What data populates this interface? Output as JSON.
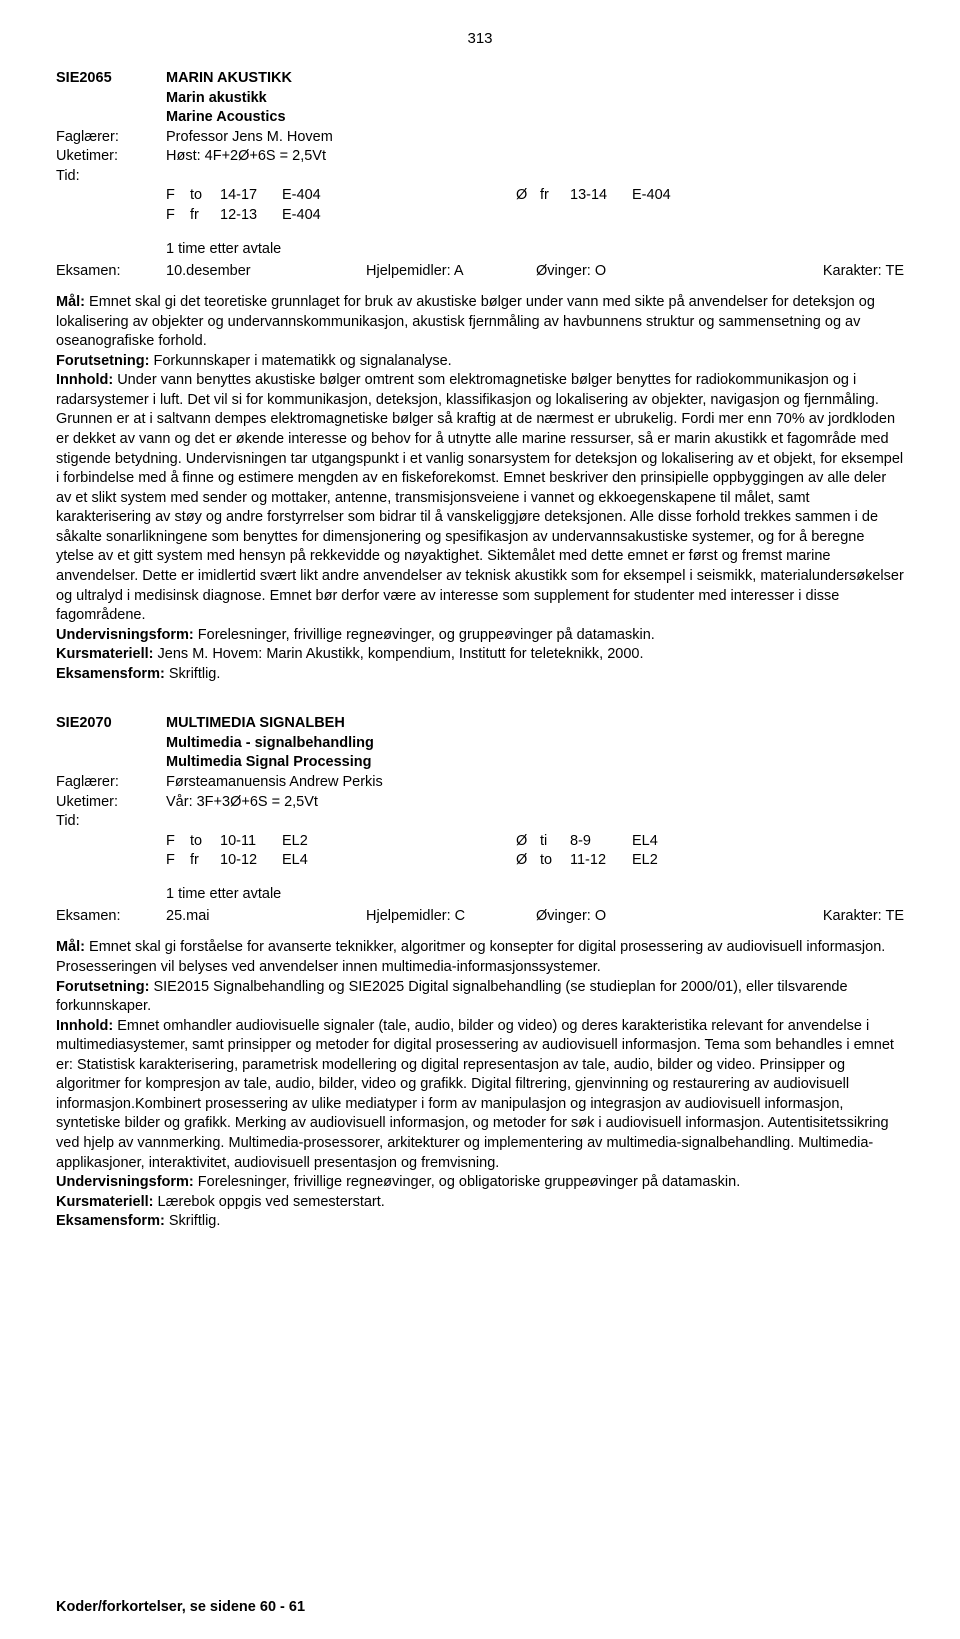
{
  "page_number": "313",
  "footer": "Koder/forkortelser, se sidene 60 - 61",
  "labels": {
    "faglaerer": "Faglærer:",
    "uketimer": "Uketimer:",
    "tid": "Tid:",
    "eksamen": "Eksamen:"
  },
  "course1": {
    "code": "SIE2065",
    "title_no_caps": "MARIN AKUSTIKK",
    "title_no": "Marin akustikk",
    "title_en": "Marine Acoustics",
    "faglaerer": "Professor Jens M. Hovem",
    "uketimer": "Høst: 4F+2Ø+6S = 2,5Vt",
    "sched": [
      {
        "l": [
          "F",
          "to",
          "14-17",
          "E-404"
        ],
        "r": [
          "Ø",
          "fr",
          "13-14",
          "E-404"
        ]
      },
      {
        "l": [
          "F",
          "fr",
          "12-13",
          "E-404"
        ],
        "r": [
          "",
          "",
          "",
          ""
        ]
      }
    ],
    "avtale": "1 time etter avtale",
    "exam": {
      "date": "10.desember",
      "hj_lbl": "Hjelpemidler:",
      "hj": "A",
      "ov_lbl": "Øvinger:",
      "ov": "O",
      "kar_lbl": "Karakter:",
      "kar": "TE"
    },
    "body": {
      "mal_lbl": "Mål:",
      "mal": " Emnet skal gi det teoretiske grunnlaget for bruk av akustiske bølger under vann med sikte på anvendelser for deteksjon og lokalisering av objekter og undervannskommunikasjon, akustisk fjernmåling av havbunnens struktur og sammensetning og av oseanografiske forhold.",
      "for_lbl": "Forutsetning:",
      "for": " Forkunnskaper i matematikk og signalanalyse.",
      "inn_lbl": "Innhold:",
      "inn": " Under vann benyttes akustiske bølger omtrent som elektromagnetiske bølger benyttes for radiokommunikasjon og i radarsystemer i luft. Det vil si for kommunikasjon, deteksjon, klassifikasjon og lokalisering av objekter, navigasjon og fjernmåling. Grunnen er at i saltvann dempes elektromagnetiske bølger så kraftig at de nærmest er ubrukelig. Fordi mer enn 70% av jordkloden er dekket av vann og det er økende interesse og behov for å utnytte alle marine ressurser, så er marin akustikk et fagområde med stigende betydning. Undervisningen tar utgangspunkt i et vanlig sonarsystem for deteksjon og lokalisering av et objekt, for eksempel i forbindelse med å finne og estimere mengden av en fiskeforekomst. Emnet beskriver den prinsipielle oppbyggingen av alle deler av et slikt system med sender og mottaker, antenne, transmisjonsveiene i vannet og ekkoegenskapene til målet, samt karakterisering av støy og andre forstyrrelser som bidrar til å vanskeliggjøre deteksjonen. Alle disse forhold trekkes sammen i de såkalte sonarlikningene som benyttes for dimensjonering og spesifikasjon av undervannsakustiske systemer, og for å beregne ytelse av et gitt system med hensyn på rekkevidde og nøyaktighet. Siktemålet med dette emnet er først og fremst marine anvendelser. Dette er imidlertid svært likt andre anvendelser av teknisk akustikk som for eksempel i seismikk, materialundersøkelser og ultralyd i medisinsk diagnose. Emnet bør derfor være av interesse som supplement for studenter med interesser i disse fagområdene.",
      "und_lbl": "Undervisningsform:",
      "und": " Forelesninger, frivillige regneøvinger, og gruppeøvinger på datamaskin.",
      "kur_lbl": "Kursmateriell:",
      "kur": " Jens M. Hovem: Marin Akustikk, kompendium, Institutt for teleteknikk, 2000.",
      "eks_lbl": "Eksamensform:",
      "eks": " Skriftlig."
    }
  },
  "course2": {
    "code": "SIE2070",
    "title_no_caps": "MULTIMEDIA SIGNALBEH",
    "title_no": "Multimedia - signalbehandling",
    "title_en": "Multimedia Signal Processing",
    "faglaerer": "Førsteamanuensis Andrew Perkis",
    "uketimer": "Vår: 3F+3Ø+6S = 2,5Vt",
    "sched": [
      {
        "l": [
          "F",
          "to",
          "10-11",
          "EL2"
        ],
        "r": [
          "Ø",
          "ti",
          "8-9",
          "EL4"
        ]
      },
      {
        "l": [
          "F",
          "fr",
          "10-12",
          "EL4"
        ],
        "r": [
          "Ø",
          "to",
          "11-12",
          "EL2"
        ]
      }
    ],
    "avtale": "1 time etter avtale",
    "exam": {
      "date": "25.mai",
      "hj_lbl": "Hjelpemidler:",
      "hj": "C",
      "ov_lbl": "Øvinger:",
      "ov": "O",
      "kar_lbl": "Karakter:",
      "kar": "TE"
    },
    "body": {
      "mal_lbl": "Mål:",
      "mal": " Emnet skal gi forståelse for avanserte teknikker, algoritmer og konsepter for digital prosessering av audiovisuell informasjon. Prosesseringen vil belyses ved anvendelser innen multimedia-informasjonssystemer.",
      "for_lbl": "Forutsetning:",
      "for": " SIE2015 Signalbehandling og SIE2025 Digital signalbehandling (se studieplan for 2000/01), eller tilsvarende forkunnskaper.",
      "inn_lbl": "Innhold:",
      "inn": " Emnet omhandler audiovisuelle signaler (tale, audio, bilder og video) og deres karakteristika relevant for anvendelse i multimediasystemer, samt prinsipper og metoder for digital prosessering av audiovisuell informasjon. Tema som behandles i emnet er: Statistisk karakterisering, parametrisk modellering og digital representasjon av tale, audio, bilder og video. Prinsipper og algoritmer for kompresjon av tale, audio, bilder, video og grafikk. Digital filtrering, gjenvinning og restaurering av audiovisuell informasjon.Kombinert prosessering av ulike mediatyper i form av manipulasjon og integrasjon av audiovisuell informasjon, syntetiske bilder og grafikk. Merking av audiovisuell informasjon, og metoder for søk i audiovisuell informasjon. Autentisitetssikring ved hjelp av vannmerking. Multimedia-prosessorer, arkitekturer og implementering av multimedia-signalbehandling. Multimedia-applikasjoner, interaktivitet, audiovisuell presentasjon og fremvisning.",
      "und_lbl": "Undervisningsform:",
      "und": " Forelesninger, frivillige regneøvinger, og obligatoriske gruppeøvinger på datamaskin.",
      "kur_lbl": "Kursmateriell:",
      "kur": " Lærebok oppgis ved semesterstart.",
      "eks_lbl": "Eksamensform:",
      "eks": " Skriftlig."
    }
  }
}
